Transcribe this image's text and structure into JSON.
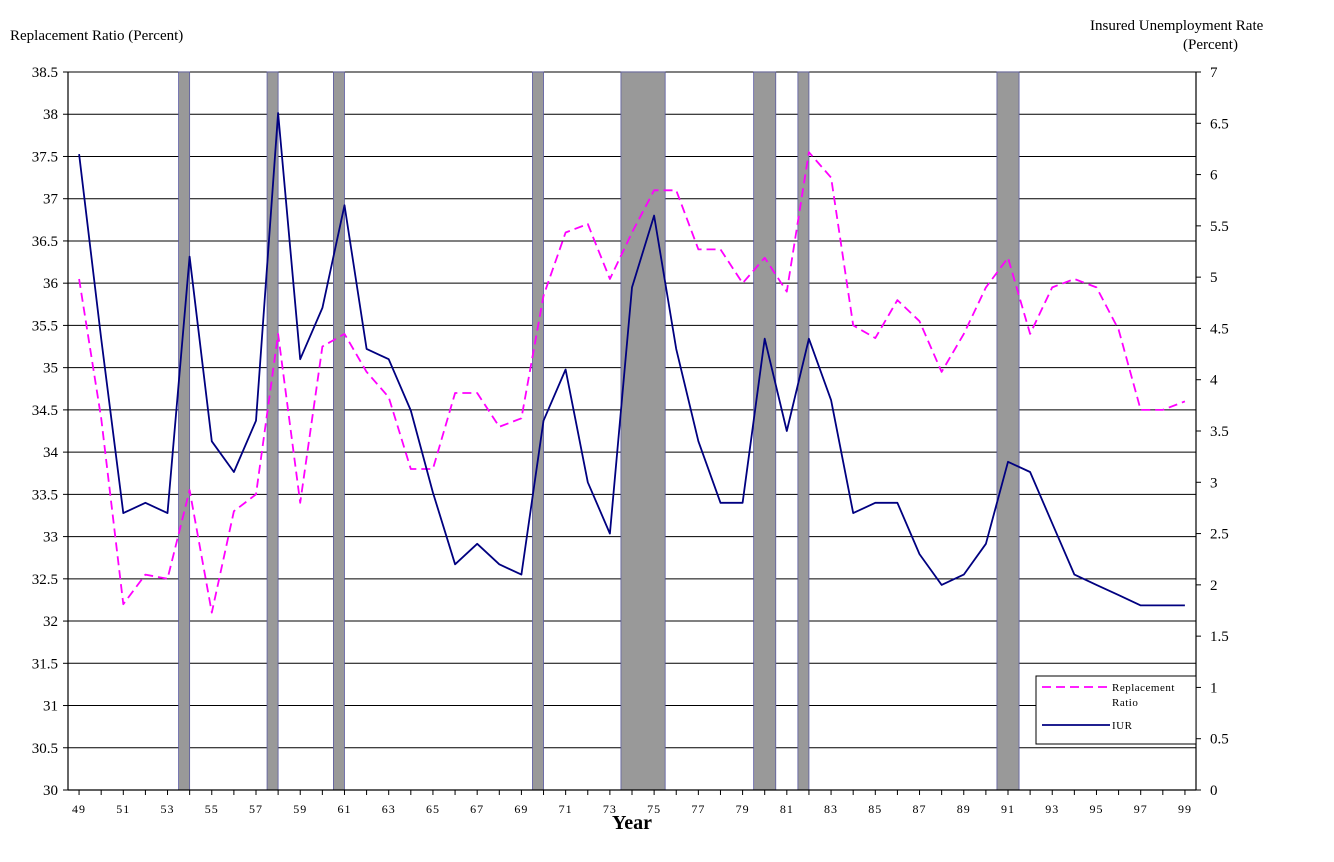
{
  "chart_data": {
    "type": "line",
    "ylabel_left": "Replacement Ratio (Percent)",
    "ylabel_right_line1": "Insured Unemployment Rate",
    "ylabel_right_line2": "(Percent)",
    "xlabel": "Year",
    "ylim_left": [
      30,
      38.5
    ],
    "ylim_right": [
      0,
      7
    ],
    "yticks_left": [
      "30",
      "30.5",
      "31",
      "31.5",
      "32",
      "32.5",
      "33",
      "33.5",
      "34",
      "34.5",
      "35",
      "35.5",
      "36",
      "36.5",
      "37",
      "37.5",
      "38",
      "38.5"
    ],
    "yticks_right": [
      "0",
      "0.5",
      "1",
      "1.5",
      "2",
      "2.5",
      "3",
      "3.5",
      "4",
      "4.5",
      "5",
      "5.5",
      "6",
      "6.5",
      "7"
    ],
    "xticks": [
      "49",
      "51",
      "53",
      "55",
      "57",
      "59",
      "61",
      "63",
      "65",
      "67",
      "69",
      "71",
      "73",
      "75",
      "77",
      "79",
      "81",
      "83",
      "85",
      "87",
      "89",
      "91",
      "93",
      "95",
      "97",
      "99"
    ],
    "years": [
      49,
      50,
      51,
      52,
      53,
      54,
      55,
      56,
      57,
      58,
      59,
      60,
      61,
      62,
      63,
      64,
      65,
      66,
      67,
      68,
      69,
      70,
      71,
      72,
      73,
      74,
      75,
      76,
      77,
      78,
      79,
      80,
      81,
      82,
      83,
      84,
      85,
      86,
      87,
      88,
      89,
      90,
      91,
      92,
      93,
      94,
      95,
      96,
      97,
      98,
      99
    ],
    "series": [
      {
        "name": "Replacement Ratio",
        "axis": "left",
        "style": "dashed",
        "color": "#ff00ff",
        "values": [
          36.05,
          34.4,
          32.2,
          32.55,
          32.5,
          33.55,
          32.1,
          33.3,
          33.5,
          35.4,
          33.4,
          35.25,
          35.4,
          34.95,
          34.65,
          33.8,
          33.8,
          34.7,
          34.7,
          34.3,
          34.4,
          35.85,
          36.6,
          36.7,
          36.05,
          36.6,
          37.1,
          37.1,
          36.4,
          36.4,
          36.0,
          36.3,
          35.9,
          37.55,
          37.25,
          35.5,
          35.35,
          35.8,
          35.55,
          34.95,
          35.4,
          35.95,
          36.3,
          35.4,
          35.95,
          36.05,
          35.95,
          35.45,
          34.5,
          34.5,
          34.6
        ]
      },
      {
        "name": "IUR",
        "axis": "right",
        "style": "solid",
        "color": "#000080",
        "values": [
          6.2,
          4.4,
          2.7,
          2.8,
          2.7,
          5.2,
          3.4,
          3.1,
          3.6,
          6.6,
          4.2,
          4.7,
          5.7,
          4.3,
          4.2,
          3.7,
          2.9,
          2.2,
          2.4,
          2.2,
          2.1,
          3.6,
          4.1,
          3.0,
          2.5,
          4.9,
          5.6,
          4.3,
          3.4,
          2.8,
          2.8,
          4.4,
          3.5,
          4.4,
          3.8,
          2.7,
          2.8,
          2.8,
          2.3,
          2.0,
          2.1,
          2.4,
          3.2,
          3.1,
          2.6,
          2.1,
          2.0,
          1.9,
          1.8,
          1.8,
          1.8
        ]
      }
    ],
    "shaded_periods": [
      [
        53.5,
        54
      ],
      [
        57.5,
        58
      ],
      [
        60.5,
        61
      ],
      [
        69.5,
        70
      ],
      [
        73.5,
        75.5
      ],
      [
        79.5,
        80.5
      ],
      [
        81.5,
        82
      ],
      [
        90.5,
        91.5
      ]
    ],
    "legend": {
      "placement": "bottom-right",
      "entries": [
        "Replacement Ratio",
        "IUR"
      ]
    },
    "grid": "horizontal"
  }
}
